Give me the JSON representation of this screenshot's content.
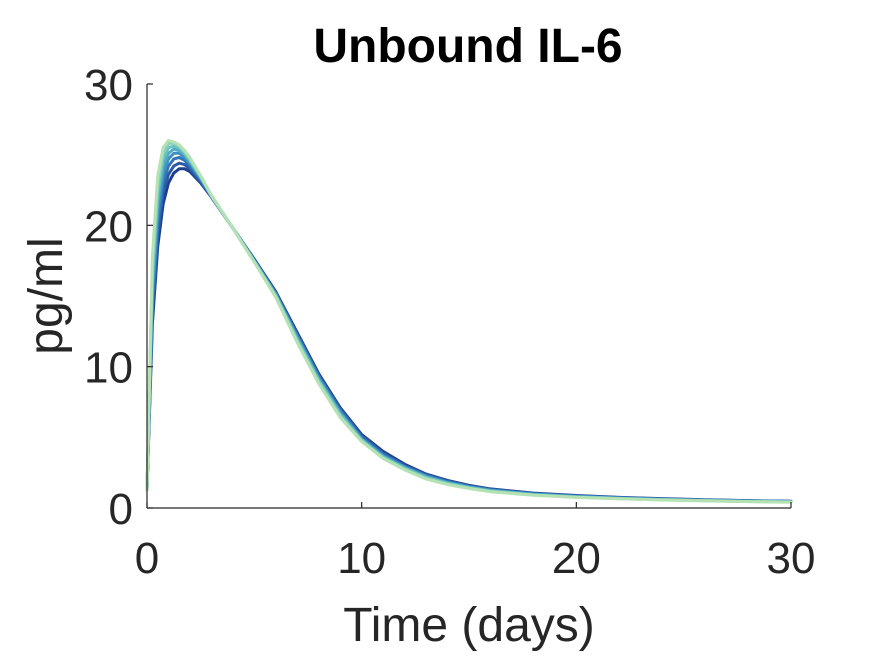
{
  "chart_data": {
    "type": "line",
    "title": "Unbound IL-6",
    "xlabel": "Time (days)",
    "ylabel": "pg/ml",
    "xlim": [
      0,
      30
    ],
    "ylim": [
      0,
      30
    ],
    "xticks": [
      "0",
      "10",
      "20",
      "30"
    ],
    "yticks": [
      "0",
      "10",
      "20",
      "30"
    ],
    "grid": false,
    "legend": "none",
    "colors": [
      "#1e3f8f",
      "#2a5aa6",
      "#3473b5",
      "#4090bf",
      "#4fabc4",
      "#69c1c2",
      "#8bd1bc",
      "#b5e2b3"
    ],
    "x": [
      0,
      0.25,
      0.5,
      0.75,
      1,
      1.25,
      1.5,
      1.75,
      2,
      2.5,
      3,
      4,
      5,
      6,
      7,
      8,
      9,
      10,
      11,
      12,
      13,
      14,
      15,
      16,
      18,
      20,
      22,
      24,
      26,
      28,
      30
    ],
    "series": [
      {
        "values": [
          1.3,
          13.0,
          18.5,
          21.5,
          23.0,
          23.7,
          24.0,
          24.0,
          23.8,
          23.0,
          22.0,
          19.8,
          17.6,
          15.3,
          12.4,
          9.5,
          7.1,
          5.2,
          4.0,
          3.1,
          2.4,
          1.95,
          1.6,
          1.35,
          1.05,
          0.88,
          0.75,
          0.66,
          0.58,
          0.52,
          0.48
        ]
      },
      {
        "values": [
          1.3,
          13.6,
          19.3,
          22.3,
          23.6,
          24.2,
          24.4,
          24.3,
          24.0,
          23.1,
          22.0,
          19.8,
          17.6,
          15.2,
          12.3,
          9.4,
          7.0,
          5.1,
          3.9,
          3.0,
          2.35,
          1.9,
          1.56,
          1.32,
          1.02,
          0.86,
          0.73,
          0.64,
          0.57,
          0.51,
          0.47
        ]
      },
      {
        "values": [
          1.3,
          14.3,
          20.1,
          23.0,
          24.2,
          24.7,
          24.8,
          24.6,
          24.2,
          23.2,
          22.0,
          19.8,
          17.5,
          15.2,
          12.2,
          9.3,
          6.9,
          5.0,
          3.8,
          2.95,
          2.3,
          1.86,
          1.53,
          1.29,
          1.0,
          0.84,
          0.72,
          0.63,
          0.56,
          0.5,
          0.46
        ]
      },
      {
        "values": [
          1.3,
          15.0,
          20.9,
          23.6,
          24.7,
          25.1,
          25.1,
          24.8,
          24.4,
          23.3,
          22.1,
          19.8,
          17.5,
          15.1,
          12.1,
          9.2,
          6.8,
          4.9,
          3.7,
          2.9,
          2.25,
          1.82,
          1.5,
          1.26,
          0.98,
          0.82,
          0.7,
          0.61,
          0.55,
          0.49,
          0.45
        ]
      },
      {
        "values": [
          1.3,
          15.7,
          21.6,
          24.2,
          25.1,
          25.4,
          25.3,
          25.0,
          24.5,
          23.4,
          22.1,
          19.8,
          17.5,
          15.1,
          12.0,
          9.1,
          6.7,
          4.85,
          3.65,
          2.85,
          2.2,
          1.78,
          1.47,
          1.23,
          0.96,
          0.8,
          0.69,
          0.6,
          0.54,
          0.48,
          0.44
        ]
      },
      {
        "values": [
          1.3,
          16.4,
          22.3,
          24.7,
          25.5,
          25.6,
          25.5,
          25.1,
          24.6,
          23.4,
          22.1,
          19.8,
          17.4,
          15.0,
          11.9,
          9.0,
          6.6,
          4.8,
          3.6,
          2.8,
          2.15,
          1.74,
          1.44,
          1.2,
          0.94,
          0.78,
          0.67,
          0.59,
          0.52,
          0.47,
          0.43
        ]
      },
      {
        "values": [
          1.3,
          17.1,
          22.9,
          25.1,
          25.8,
          25.8,
          25.6,
          25.2,
          24.7,
          23.5,
          22.1,
          19.8,
          17.4,
          15.0,
          11.8,
          8.9,
          6.5,
          4.75,
          3.55,
          2.75,
          2.1,
          1.7,
          1.41,
          1.17,
          0.92,
          0.76,
          0.66,
          0.58,
          0.51,
          0.46,
          0.42
        ]
      },
      {
        "values": [
          1.3,
          17.8,
          23.5,
          25.5,
          26.0,
          25.9,
          25.7,
          25.3,
          24.8,
          23.5,
          22.1,
          19.8,
          17.4,
          14.9,
          11.7,
          8.8,
          6.4,
          4.7,
          3.5,
          2.7,
          2.05,
          1.66,
          1.38,
          1.15,
          0.9,
          0.75,
          0.65,
          0.57,
          0.5,
          0.45,
          0.41
        ]
      }
    ]
  }
}
